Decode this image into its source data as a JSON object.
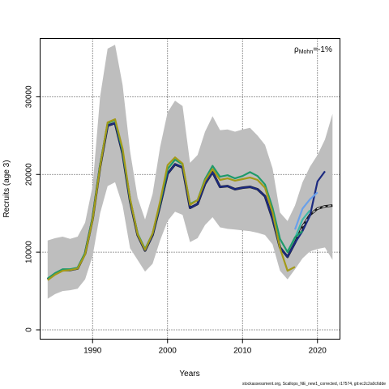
{
  "chart_data": {
    "type": "line",
    "xlabel": "Years",
    "ylabel": "Recruits (age 3)",
    "xlim": [
      1983,
      2023
    ],
    "ylim": [
      -1200,
      37500
    ],
    "xticks": [
      1990,
      2000,
      2010,
      2020
    ],
    "yticks": [
      0,
      10000,
      20000,
      30000
    ],
    "grid": "dotted",
    "annotation": {
      "rho_symbol": "ρ",
      "rho_sub": "Mohn",
      "rho_value": "=-1%"
    },
    "band_color": "#bebebe",
    "band": {
      "x": [
        1984,
        1985,
        1986,
        1987,
        1988,
        1989,
        1990,
        1991,
        1992,
        1993,
        1994,
        1995,
        1996,
        1997,
        1998,
        1999,
        2000,
        2001,
        2002,
        2003,
        2004,
        2005,
        2006,
        2007,
        2008,
        2009,
        2010,
        2011,
        2012,
        2013,
        2014,
        2015,
        2016,
        2017,
        2018,
        2019,
        2020,
        2021,
        2022
      ],
      "lower": [
        4000,
        4600,
        5000,
        5100,
        5300,
        6500,
        9500,
        15000,
        18500,
        19000,
        16000,
        10500,
        9000,
        7500,
        8500,
        11500,
        14000,
        15200,
        14800,
        11300,
        11800,
        13500,
        14500,
        13200,
        13000,
        12900,
        12800,
        12700,
        12500,
        12200,
        11000,
        7600,
        6500,
        7800,
        9200,
        10100,
        10400,
        10600,
        9000
      ],
      "upper": [
        11500,
        11800,
        12000,
        11700,
        12000,
        13800,
        18500,
        30000,
        36200,
        36700,
        31500,
        23000,
        17000,
        14200,
        17500,
        23500,
        28000,
        29500,
        28800,
        21500,
        22500,
        25500,
        27500,
        25700,
        25800,
        25500,
        25800,
        26000,
        25000,
        23800,
        20800,
        15100,
        14000,
        16000,
        19000,
        21000,
        22500,
        24500,
        27800
      ]
    },
    "series": [
      {
        "color": "#1a1a1a",
        "dashed": true,
        "x": [
          1984,
          1985,
          1986,
          1987,
          1988,
          1989,
          1990,
          1991,
          1992,
          1993,
          1994,
          1995,
          1996,
          1997,
          1998,
          1999,
          2000,
          2001,
          2002,
          2003,
          2004,
          2005,
          2006,
          2007,
          2008,
          2009,
          2010,
          2011,
          2012,
          2013,
          2014,
          2015,
          2016,
          2017,
          2018,
          2019,
          2020,
          2021,
          2022
        ],
        "values": [
          6500,
          7200,
          7700,
          7700,
          7900,
          9800,
          14300,
          21000,
          26300,
          26600,
          22700,
          16600,
          12200,
          10200,
          12200,
          16000,
          20100,
          21300,
          20900,
          15700,
          16200,
          18800,
          20300,
          18400,
          18500,
          18100,
          18300,
          18400,
          18100,
          17200,
          14300,
          10600,
          9400,
          11200,
          13300,
          14800,
          15600,
          15900,
          16000
        ]
      },
      {
        "color": "#1c2a80",
        "x": [
          1984,
          1985,
          1986,
          1987,
          1988,
          1989,
          1990,
          1991,
          1992,
          1993,
          1994,
          1995,
          1996,
          1997,
          1998,
          1999,
          2000,
          2001,
          2002,
          2003,
          2004,
          2005,
          2006,
          2007,
          2008,
          2009,
          2010,
          2011,
          2012,
          2013,
          2014,
          2015,
          2016,
          2017,
          2018,
          2019,
          2020,
          2021
        ],
        "values": [
          6500,
          7200,
          7700,
          7700,
          7900,
          9800,
          14300,
          21000,
          26300,
          26600,
          22700,
          16600,
          12200,
          10200,
          12200,
          16000,
          20100,
          21300,
          20900,
          15700,
          16200,
          18800,
          20300,
          18400,
          18500,
          18100,
          18300,
          18400,
          18100,
          17200,
          14300,
          10600,
          9400,
          11200,
          12700,
          14700,
          19100,
          20400
        ]
      },
      {
        "color": "#6aa0ea",
        "x": [
          2017,
          2018,
          2019,
          2020
        ],
        "values": [
          12900,
          15600,
          16800,
          17700
        ]
      },
      {
        "color": "#3db8a8",
        "x": [
          2016,
          2017,
          2018,
          2019
        ],
        "values": [
          10100,
          11800,
          14200,
          15400
        ]
      },
      {
        "color": "#1f9a6a",
        "x": [
          1984,
          1985,
          1986,
          1987,
          1988,
          1989,
          1990,
          1991,
          1992,
          1993,
          1994,
          1995,
          1996,
          1997,
          1998,
          1999,
          2000,
          2001,
          2002,
          2003,
          2004,
          2005,
          2006,
          2007,
          2008,
          2009,
          2010,
          2011,
          2012,
          2013,
          2014,
          2015,
          2016,
          2017,
          2018
        ],
        "values": [
          6600,
          7300,
          7800,
          7800,
          8000,
          9900,
          14400,
          21200,
          26600,
          27000,
          23000,
          16800,
          12400,
          10400,
          12400,
          16300,
          20700,
          21900,
          21300,
          16200,
          16700,
          19400,
          21100,
          19700,
          19900,
          19500,
          19800,
          20300,
          19800,
          18700,
          15700,
          11700,
          10000,
          11900,
          12700
        ]
      },
      {
        "color": "#a49a18",
        "x": [
          1984,
          1985,
          1986,
          1987,
          1988,
          1989,
          1990,
          1991,
          1992,
          1993,
          1994,
          1995,
          1996,
          1997,
          1998,
          1999,
          2000,
          2001,
          2002,
          2003,
          2004,
          2005,
          2006,
          2007,
          2008,
          2009,
          2010,
          2011,
          2012,
          2013,
          2014,
          2015,
          2016,
          2017
        ],
        "values": [
          6400,
          7100,
          7600,
          7700,
          7900,
          9700,
          14200,
          21000,
          26700,
          27100,
          23300,
          16900,
          12300,
          10300,
          12400,
          16500,
          21200,
          22200,
          21400,
          16100,
          16700,
          19200,
          20700,
          19300,
          19500,
          19200,
          19400,
          19600,
          19300,
          18300,
          15100,
          10500,
          7600,
          8100
        ]
      }
    ]
  },
  "footer": "stockassessment.org, Scallops_NE_new1_corrected, r17574, git:ec2c2a0c6dde"
}
